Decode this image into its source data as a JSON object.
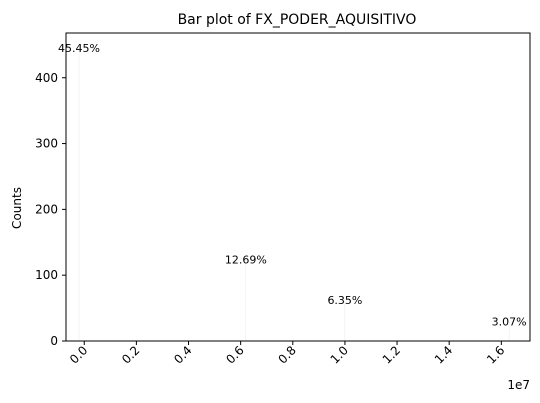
{
  "chart_data": {
    "type": "bar",
    "title": "Bar plot of FX_PODER_AQUISITIVO",
    "xlabel": "",
    "ylabel": "Counts",
    "x_offset_label": "1e7",
    "xlim": [
      -0.07,
      1.71
    ],
    "ylim": [
      0,
      468
    ],
    "xticks": [
      0.0,
      0.2,
      0.4,
      0.6,
      0.8,
      1.0,
      1.2,
      1.4,
      1.6
    ],
    "xtick_labels": [
      "0.0",
      "0.2",
      "0.4",
      "0.6",
      "0.8",
      "1.0",
      "1.2",
      "1.4",
      "1.6"
    ],
    "yticks": [
      0,
      100,
      200,
      300,
      400
    ],
    "ytick_labels": [
      "0",
      "100",
      "200",
      "300",
      "400"
    ],
    "series": [
      {
        "x": [
          -0.02,
          0.62,
          1.0,
          1.63
        ],
        "values": [
          445,
          124,
          62,
          30
        ],
        "labels": [
          "45.45%",
          "12.69%",
          "6.35%",
          "3.07%"
        ]
      }
    ],
    "grid": false,
    "legend": "none"
  }
}
